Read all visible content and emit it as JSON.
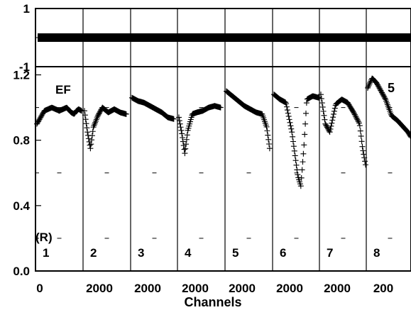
{
  "chart_data": {
    "type": "scatter",
    "xlabel": "Channels",
    "panel_label": "EF",
    "corner_label": "5",
    "channel_axis_label": "(R)",
    "channels": [
      "1",
      "2",
      "3",
      "4",
      "5",
      "6",
      "7",
      "8"
    ],
    "x_ticks": [
      "0",
      "2000",
      "2000",
      "2000",
      "2000",
      "2000",
      "2000",
      "200"
    ],
    "residual_panel": {
      "ylim": [
        -1,
        1
      ],
      "y_ticks": [
        "1",
        "-1"
      ],
      "value": 0
    },
    "main_panel": {
      "ylim": [
        0,
        1.25
      ],
      "y_ticks": [
        "1.2",
        "0.8",
        "0.4",
        "0.0"
      ],
      "channels": [
        {
          "name": "1",
          "x_channel": [
            0,
            500,
            1000,
            1500,
            2000,
            2300,
            2500,
            2650,
            2800,
            3000
          ],
          "y": [
            0.9,
            0.98,
            1.0,
            0.98,
            1.0,
            0.97,
            0.96,
            0.98,
            0.99,
            0.98
          ]
        },
        {
          "name": "2",
          "x_channel": [
            0,
            200,
            400,
            600,
            900,
            1200,
            1600,
            2000,
            2400,
            2800
          ],
          "y": [
            0.98,
            0.85,
            0.75,
            0.88,
            0.95,
            1.0,
            0.97,
            0.99,
            0.97,
            0.96
          ]
        },
        {
          "name": "3",
          "x_channel": [
            0,
            400,
            800,
            1200,
            1600,
            2000,
            2400,
            2800
          ],
          "y": [
            1.06,
            1.04,
            1.03,
            1.01,
            0.99,
            0.97,
            0.94,
            0.93
          ]
        },
        {
          "name": "4",
          "x_channel": [
            0,
            200,
            400,
            600,
            900,
            1200,
            1600,
            2000,
            2400,
            2800
          ],
          "y": [
            0.94,
            0.84,
            0.72,
            0.86,
            0.96,
            0.97,
            0.98,
            1.0,
            1.01,
            1.0
          ]
        },
        {
          "name": "5",
          "x_channel": [
            0,
            400,
            800,
            1200,
            1600,
            2000,
            2400,
            2700,
            2900
          ],
          "y": [
            1.1,
            1.07,
            1.04,
            1.01,
            0.99,
            0.97,
            0.96,
            0.88,
            0.75
          ]
        },
        {
          "name": "6",
          "x_channel": [
            0,
            400,
            800,
            1200,
            1600,
            1800,
            2000,
            2200,
            2600,
            3000
          ],
          "y": [
            1.08,
            1.05,
            1.03,
            0.85,
            0.58,
            0.52,
            0.75,
            1.05,
            1.07,
            1.06
          ]
        },
        {
          "name": "7",
          "x_channel": [
            0,
            300,
            600,
            1000,
            1400,
            1800,
            2200,
            2600,
            2800,
            3000
          ],
          "y": [
            1.08,
            0.9,
            0.85,
            1.02,
            1.05,
            1.03,
            0.97,
            0.9,
            0.75,
            0.65
          ]
        },
        {
          "name": "8",
          "x_channel": [
            0,
            300,
            600,
            900,
            1200,
            1600,
            2000,
            2400,
            2700,
            2900
          ],
          "y": [
            1.12,
            1.18,
            1.15,
            1.1,
            1.05,
            0.95,
            0.92,
            0.88,
            0.85,
            0.82
          ]
        }
      ]
    }
  }
}
